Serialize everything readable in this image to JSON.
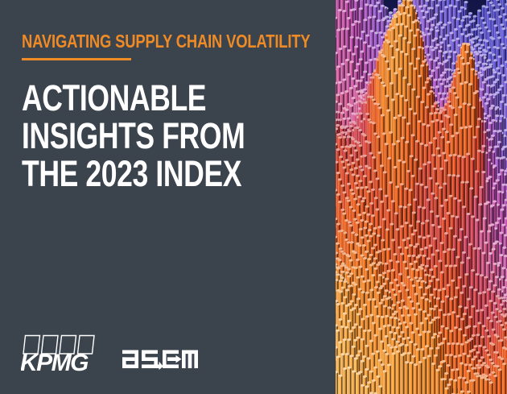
{
  "page": {
    "background": "#3b434d"
  },
  "cover": {
    "eyebrow": "NAVIGATING SUPPLY CHAIN VOLATILITY",
    "title_lines": [
      "ACTIONABLE",
      "INSIGHTS FROM",
      "THE 2023 INDEX"
    ],
    "accent_color": "#ef8b26",
    "title_color": "#ffffff"
  },
  "logos": {
    "kpmg": {
      "label": "KPMG",
      "color": "#ffffff"
    },
    "ascm": {
      "label": "ascm",
      "color": "#ffffff"
    }
  },
  "artwork": {
    "name": "tube-terrain-3d-render",
    "background_top": "#121647",
    "background_bottom": "#6e2607",
    "palette": [
      {
        "z": 0.0,
        "color": "#3f3eb0"
      },
      {
        "z": 0.1,
        "color": "#5b52cf"
      },
      {
        "z": 0.2,
        "color": "#8263d6"
      },
      {
        "z": 0.28,
        "color": "#9c56c6"
      },
      {
        "z": 0.36,
        "color": "#c04fae"
      },
      {
        "z": 0.44,
        "color": "#d260a0"
      },
      {
        "z": 0.51,
        "color": "#c93f55"
      },
      {
        "z": 0.58,
        "color": "#d7452c"
      },
      {
        "z": 0.66,
        "color": "#e85e1d"
      },
      {
        "z": 0.76,
        "color": "#ee8226"
      },
      {
        "z": 0.86,
        "color": "#f29d3a"
      },
      {
        "z": 1.0,
        "color": "#f8bc5f"
      }
    ]
  }
}
